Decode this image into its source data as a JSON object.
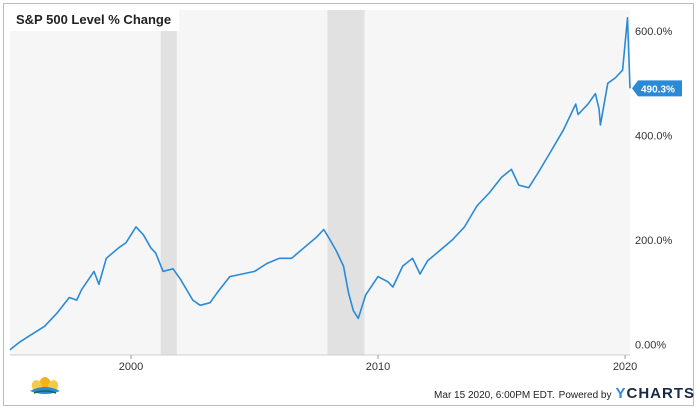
{
  "chart_data": {
    "type": "line",
    "title": "S&P 500 Level % Change",
    "x_tick_labels": [
      "2000",
      "2010",
      "2020"
    ],
    "x_ticks": [
      2000,
      2010,
      2020
    ],
    "xlim": [
      1995.1,
      2020.2
    ],
    "y_tick_labels": [
      "0.00%",
      "200.0%",
      "400.0%",
      "600.0%"
    ],
    "y_ticks": [
      0,
      200,
      400,
      600
    ],
    "ylim": [
      -20,
      640
    ],
    "grid": false,
    "recession_bands": [
      [
        2001.2,
        2001.85
      ],
      [
        2007.95,
        2009.45
      ]
    ],
    "last_value_label": "490.3%",
    "series": [
      {
        "color": "#2a8ad6",
        "x": [
          1995.1,
          1995.5,
          1996.0,
          1996.5,
          1997.0,
          1997.5,
          1997.8,
          1998.0,
          1998.5,
          1998.7,
          1999.0,
          1999.5,
          1999.8,
          2000.2,
          2000.5,
          2000.8,
          2001.0,
          2001.3,
          2001.7,
          2002.0,
          2002.5,
          2002.8,
          2003.2,
          2003.5,
          2004.0,
          2004.5,
          2005.0,
          2005.5,
          2006.0,
          2006.5,
          2007.0,
          2007.5,
          2007.8,
          2008.0,
          2008.3,
          2008.6,
          2008.8,
          2009.0,
          2009.2,
          2009.5,
          2010.0,
          2010.4,
          2010.6,
          2011.0,
          2011.4,
          2011.7,
          2012.0,
          2012.5,
          2013.0,
          2013.5,
          2014.0,
          2014.5,
          2015.0,
          2015.4,
          2015.7,
          2016.1,
          2016.5,
          2017.0,
          2017.5,
          2018.0,
          2018.1,
          2018.5,
          2018.8,
          2018.95,
          2019.0,
          2019.3,
          2019.6,
          2019.9,
          2020.1,
          2020.2
        ],
        "y": [
          -10,
          5,
          20,
          35,
          60,
          90,
          85,
          105,
          140,
          115,
          165,
          185,
          195,
          225,
          210,
          185,
          175,
          140,
          145,
          125,
          85,
          75,
          80,
          100,
          130,
          135,
          140,
          155,
          165,
          165,
          185,
          205,
          220,
          205,
          180,
          150,
          100,
          65,
          50,
          95,
          130,
          120,
          110,
          150,
          165,
          135,
          160,
          180,
          200,
          225,
          265,
          290,
          320,
          335,
          305,
          300,
          330,
          370,
          410,
          460,
          440,
          460,
          480,
          450,
          420,
          500,
          510,
          525,
          625,
          490
        ]
      }
    ]
  },
  "footer": {
    "timestamp": "Mar 15 2020, 6:00PM EDT.",
    "powered_by": "Powered by",
    "brand_y": "Y",
    "brand_rest": "CHARTS"
  },
  "colors": {
    "line": "#2a8ad6",
    "plot_bg": "#f6f6f6",
    "recession": "#e1e1e1",
    "accent": "#2a8ad6"
  }
}
